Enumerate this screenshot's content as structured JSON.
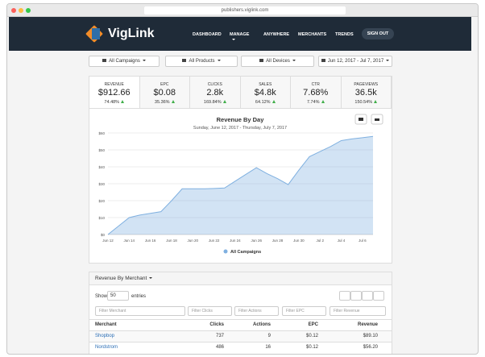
{
  "browser": {
    "url": "publishers.viglink.com"
  },
  "nav": {
    "brand": "VigLink",
    "items": [
      "DASHBOARD",
      "MANAGE",
      "ANYWHERE",
      "MERCHANTS",
      "TRENDS"
    ],
    "sign_out": "SIGN OUT"
  },
  "filters": [
    "All Campaigns",
    "All Products",
    "All Devices",
    "Jun 12, 2017 - Jul 7, 2017"
  ],
  "metrics": [
    {
      "label": "REVENUE",
      "value": "$912.66",
      "change": "74.48%"
    },
    {
      "label": "EPC",
      "value": "$0.08",
      "change": "35.36%"
    },
    {
      "label": "CLICKS",
      "value": "2.8k",
      "change": "169.84%"
    },
    {
      "label": "SALES",
      "value": "$4.8k",
      "change": "64.12%"
    },
    {
      "label": "CTR",
      "value": "7.68%",
      "change": "7.74%"
    },
    {
      "label": "PAGEVIEWS",
      "value": "36.5k",
      "change": "150.54%"
    }
  ],
  "chart_data": {
    "type": "area",
    "title": "Revenue By Day",
    "subtitle": "Sunday, June 12, 2017 - Thursday, July 7, 2017",
    "categories": [
      "Jun 12",
      null,
      "Jun 14",
      null,
      "Jun 16",
      null,
      "Jun 18",
      null,
      "Jun 20",
      null,
      "Jun 22",
      null,
      "Jun 24",
      null,
      "Jun 26",
      null,
      "Jun 28",
      null,
      "Jun 30",
      null,
      "Jul 2",
      null,
      "Jul 4",
      null,
      "Jul 6",
      null
    ],
    "series": [
      {
        "name": "All Campaigns",
        "color": "#7fb0e0",
        "values": [
          0,
          5,
          10,
          11.5,
          12.5,
          13.5,
          20,
          27,
          27,
          27,
          27.2,
          27.5,
          31.5,
          35.5,
          39.5,
          36,
          33,
          29.5,
          38,
          46,
          49,
          52,
          55.5,
          56.5,
          57.2,
          58
        ]
      }
    ],
    "ylim": [
      0,
      60
    ],
    "yticks": [
      {
        "value": 0,
        "label": "$0"
      },
      {
        "value": 10,
        "label": "$10"
      },
      {
        "value": 20,
        "label": "$20"
      },
      {
        "value": 30,
        "label": "$30"
      },
      {
        "value": 40,
        "label": "$40"
      },
      {
        "value": 50,
        "label": "$50"
      },
      {
        "value": 60,
        "label": "$60"
      }
    ],
    "grid": true,
    "legend": "bottom"
  },
  "table": {
    "title": "Revenue By Merchant",
    "show": "Show",
    "page_size": "50",
    "entries": "entries",
    "filters": [
      "Filter Merchant",
      "Filter Clicks",
      "Filter Actions",
      "Filter EPC",
      "Filter Revenue"
    ],
    "columns": [
      "Merchant",
      "Clicks",
      "Actions",
      "EPC",
      "Revenue"
    ],
    "rows": [
      [
        "Shopbop",
        "737",
        "9",
        "$0.12",
        "$89.10"
      ],
      [
        "Nordstrom",
        "486",
        "16",
        "$0.12",
        "$56.20"
      ]
    ]
  }
}
